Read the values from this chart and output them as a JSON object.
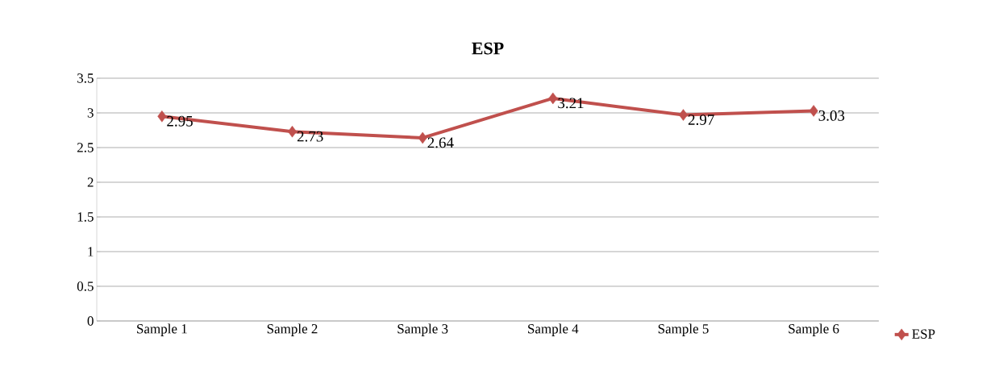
{
  "chart_data": {
    "type": "line",
    "title": "ESP",
    "categories": [
      "Sample 1",
      "Sample 2",
      "Sample 3",
      "Sample 4",
      "Sample 5",
      "Sample 6"
    ],
    "series": [
      {
        "name": "ESP",
        "color": "#c0504d",
        "values": [
          2.95,
          2.73,
          2.64,
          3.21,
          2.97,
          3.03
        ]
      }
    ],
    "ylim": [
      0,
      3.5
    ],
    "yticks": [
      0,
      0.5,
      1,
      1.5,
      2,
      2.5,
      3,
      3.5
    ],
    "grid": "y",
    "legend": "bottom right",
    "marker": "diamond",
    "line_style": "solid",
    "data_labels": true
  }
}
